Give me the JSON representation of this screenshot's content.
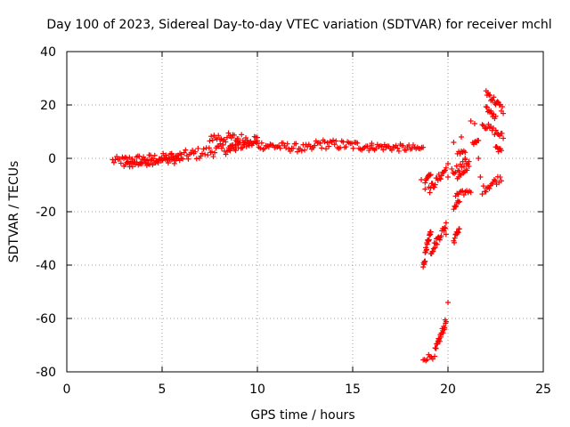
{
  "chart_data": {
    "type": "scatter",
    "title": "Day 100 of 2023, Sidereal Day-to-day VTEC variation (SDTVAR) for receiver mchl",
    "xlabel": "GPS time / hours",
    "ylabel": "SDTVAR / TECUs",
    "xlim": [
      0,
      25
    ],
    "ylim": [
      -80,
      40
    ],
    "xticks": [
      "0",
      "5",
      "10",
      "15",
      "20",
      "25"
    ],
    "yticks": [
      "-80",
      "-60",
      "-40",
      "-20",
      "0",
      "20",
      "40"
    ],
    "grid": true,
    "marker": "plus",
    "color": "#ff0000",
    "segments": [
      {
        "x0": 2.4,
        "y0": -1.0,
        "x1": 5.5,
        "y1": 0.5,
        "spread": 1.6
      },
      {
        "x0": 3.0,
        "y0": -2.5,
        "x1": 6.0,
        "y1": 0.0,
        "spread": 1.2
      },
      {
        "x0": 5.5,
        "y0": 0.0,
        "x1": 9.0,
        "y1": 4.5,
        "spread": 2.2
      },
      {
        "x0": 7.5,
        "y0": 8.0,
        "x1": 10.0,
        "y1": 7.0,
        "spread": 2.0
      },
      {
        "x0": 8.5,
        "y0": 3.5,
        "x1": 10.0,
        "y1": 6.0,
        "spread": 1.4
      },
      {
        "x0": 10.0,
        "y0": 5.0,
        "x1": 13.0,
        "y1": 3.5,
        "spread": 1.6
      },
      {
        "x0": 13.0,
        "y0": 5.5,
        "x1": 16.0,
        "y1": 4.5,
        "spread": 1.8
      },
      {
        "x0": 16.0,
        "y0": 4.5,
        "x1": 18.7,
        "y1": 3.5,
        "spread": 1.4
      },
      {
        "x0": 18.7,
        "y0": -75.0,
        "x1": 19.2,
        "y1": -74.0,
        "spread": 1.2
      },
      {
        "x0": 19.3,
        "y0": -73.0,
        "x1": 19.9,
        "y1": -61.0,
        "spread": 1.5
      },
      {
        "x0": 18.7,
        "y0": -40.0,
        "x1": 18.8,
        "y1": -39.0,
        "spread": 0.8
      },
      {
        "x0": 18.8,
        "y0": -35.0,
        "x1": 19.1,
        "y1": -27.0,
        "spread": 1.2
      },
      {
        "x0": 19.1,
        "y0": -35.0,
        "x1": 19.9,
        "y1": -25.0,
        "spread": 1.5
      },
      {
        "x0": 18.8,
        "y0": -8.0,
        "x1": 19.1,
        "y1": -5.0,
        "spread": 1.2
      },
      {
        "x0": 19.0,
        "y0": -12.0,
        "x1": 19.9,
        "y1": -4.0,
        "spread": 1.5
      },
      {
        "x0": 20.3,
        "y0": -31.0,
        "x1": 20.6,
        "y1": -26.0,
        "spread": 1.2
      },
      {
        "x0": 20.3,
        "y0": -19.0,
        "x1": 20.6,
        "y1": -16.0,
        "spread": 1.0
      },
      {
        "x0": 20.4,
        "y0": -14.0,
        "x1": 21.2,
        "y1": -12.0,
        "spread": 1.0
      },
      {
        "x0": 20.2,
        "y0": -5.0,
        "x1": 21.1,
        "y1": -1.0,
        "spread": 1.5
      },
      {
        "x0": 20.5,
        "y0": -7.0,
        "x1": 21.0,
        "y1": -5.0,
        "spread": 1.0
      },
      {
        "x0": 20.5,
        "y0": 2.0,
        "x1": 20.9,
        "y1": 3.0,
        "spread": 0.8
      },
      {
        "x0": 21.3,
        "y0": 5.0,
        "x1": 21.6,
        "y1": 6.5,
        "spread": 1.0
      },
      {
        "x0": 21.8,
        "y0": -12.0,
        "x1": 22.8,
        "y1": -7.0,
        "spread": 1.5
      },
      {
        "x0": 21.8,
        "y0": 13.0,
        "x1": 22.9,
        "y1": 8.0,
        "spread": 1.3
      },
      {
        "x0": 22.0,
        "y0": 25.0,
        "x1": 22.9,
        "y1": 18.0,
        "spread": 1.5
      },
      {
        "x0": 22.0,
        "y0": 19.0,
        "x1": 22.5,
        "y1": 15.0,
        "spread": 1.0
      },
      {
        "x0": 22.5,
        "y0": 4.0,
        "x1": 22.8,
        "y1": 2.5,
        "spread": 0.8
      }
    ],
    "points": [
      {
        "x": 20.0,
        "y": -54.0
      },
      {
        "x": 19.9,
        "y": -28.5
      },
      {
        "x": 20.0,
        "y": -2.0
      },
      {
        "x": 20.0,
        "y": -7.0
      },
      {
        "x": 20.3,
        "y": 6.0
      },
      {
        "x": 20.9,
        "y": 0.0
      },
      {
        "x": 21.2,
        "y": 14.0
      },
      {
        "x": 21.4,
        "y": 13.0
      },
      {
        "x": 21.7,
        "y": -7.0
      },
      {
        "x": 21.6,
        "y": 0.0
      },
      {
        "x": 21.1,
        "y": -3.0
      },
      {
        "x": 18.8,
        "y": -11.5
      },
      {
        "x": 18.6,
        "y": -8.0
      },
      {
        "x": 20.7,
        "y": 8.0
      }
    ]
  }
}
